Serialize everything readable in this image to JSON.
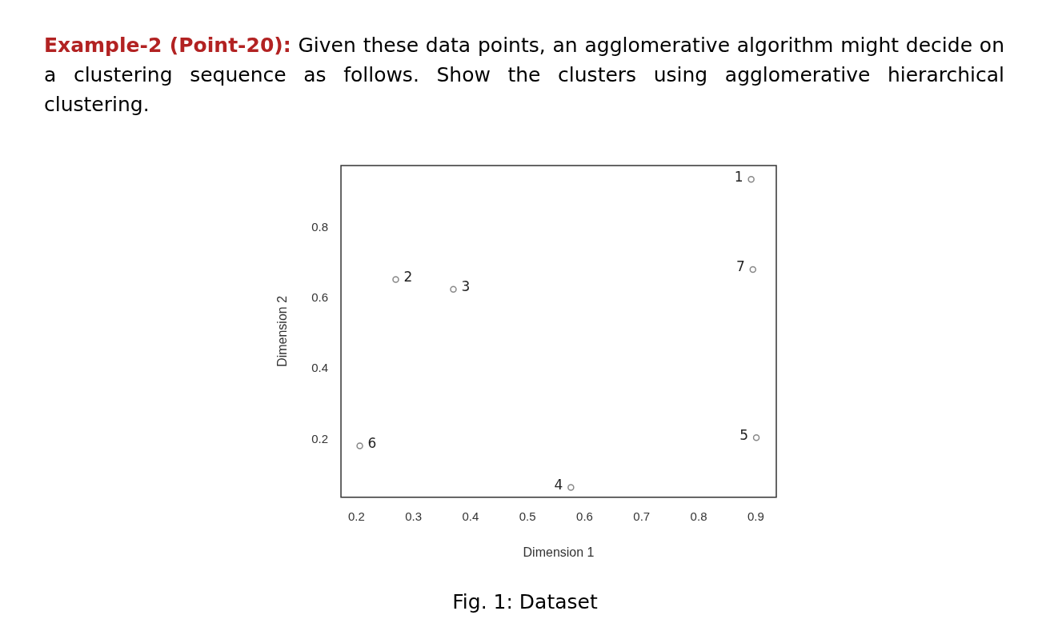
{
  "chart_data": {
    "type": "scatter",
    "title": "Example-2 (Point-20):",
    "subtitle": "Given these data points, an agglomerative algorithm might decide on a clustering sequence as follows. Show the clusters using agglomerative hierarchical clustering.",
    "xlabel": "Dimension 1",
    "ylabel": "Dimension 2",
    "annotations": [
      "Fig. 1: Dataset",
      {
        "text": "1",
        "x": 0.892,
        "y": 0.938
      },
      {
        "text": "2",
        "x": 0.269,
        "y": 0.654
      },
      {
        "text": "3",
        "x": 0.37,
        "y": 0.626
      },
      {
        "text": "4",
        "x": 0.576,
        "y": 0.064
      },
      {
        "text": "5",
        "x": 0.901,
        "y": 0.205
      },
      {
        "text": "6",
        "x": 0.206,
        "y": 0.182
      },
      {
        "text": "7",
        "x": 0.895,
        "y": 0.682
      }
    ],
    "x": [
      0.892,
      0.269,
      0.37,
      0.576,
      0.901,
      0.206,
      0.895
    ],
    "values": [
      0.938,
      0.654,
      0.626,
      0.064,
      0.205,
      0.182,
      0.682
    ],
    "color": "#888888",
    "marker": "circle",
    "xlim": [
      0.173,
      0.936
    ],
    "ylim": [
      0.036,
      0.977
    ],
    "xticks": [
      0.2,
      0.3,
      0.4,
      0.5,
      0.6,
      0.7,
      0.8,
      0.9
    ],
    "yticks": [
      0.2,
      0.4,
      0.6,
      0.8
    ],
    "grid": false,
    "legend": false
  }
}
